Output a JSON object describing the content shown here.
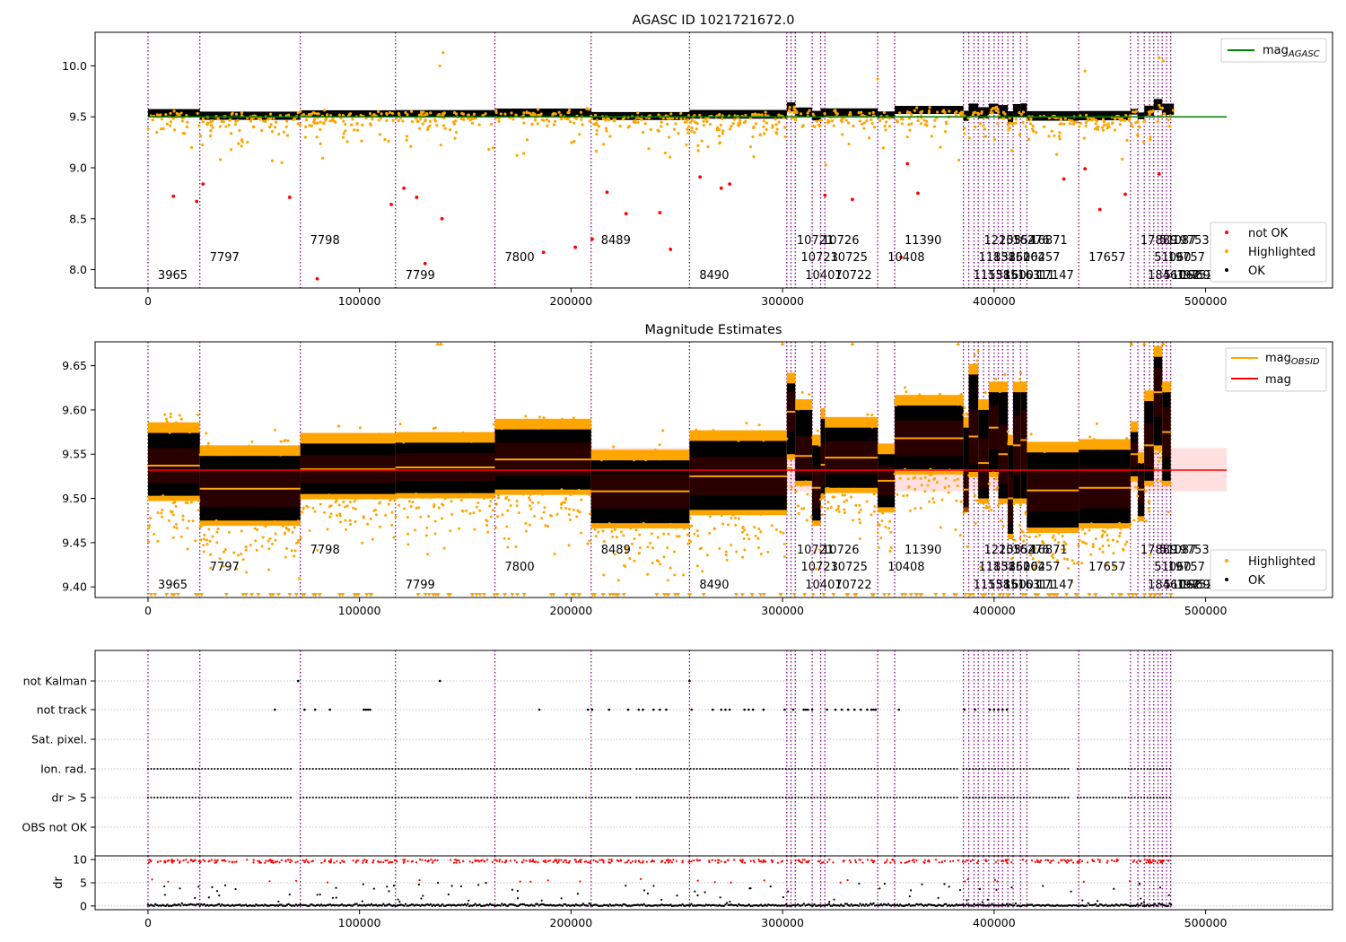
{
  "chart_data": [
    {
      "type": "scatter",
      "title": "AGASC ID 1021721672.0",
      "xlim": [
        -25000,
        560000
      ],
      "ylim": [
        7.82,
        10.33
      ],
      "xticks": [
        0,
        100000,
        200000,
        300000,
        400000,
        500000
      ],
      "yticks": [
        8.0,
        8.5,
        9.0,
        9.5,
        10.0
      ],
      "grid": false,
      "legend_placement": "top-right (mag line) and bottom-right (points)",
      "series": [
        {
          "name": "mag_AGASC",
          "kind": "line",
          "color": "#008000",
          "x": [
            0,
            510000
          ],
          "y": [
            9.5,
            9.5
          ]
        },
        {
          "name": "not OK",
          "kind": "points",
          "color": "#ff0000",
          "x": [
            12000,
            23000,
            26000,
            67000,
            80000,
            115000,
            121000,
            127000,
            131000,
            139000,
            187000,
            202000,
            210000,
            217000,
            226000,
            242000,
            247000,
            261000,
            271000,
            275000,
            320000,
            333000,
            356000,
            359000,
            364000,
            433000,
            443000,
            450000,
            462000,
            478000
          ],
          "y": [
            8.72,
            8.67,
            8.84,
            8.71,
            7.91,
            8.64,
            8.8,
            8.71,
            8.06,
            8.5,
            8.17,
            8.22,
            8.3,
            8.76,
            8.55,
            8.56,
            8.2,
            8.91,
            8.8,
            8.84,
            8.73,
            8.69,
            8.12,
            9.04,
            8.75,
            8.89,
            8.99,
            8.59,
            8.74,
            8.94
          ]
        },
        {
          "name": "Highlighted",
          "kind": "points",
          "color": "#ffa500"
        },
        {
          "name": "OK",
          "kind": "points",
          "color": "#000000"
        }
      ],
      "obsids": [
        {
          "label": "3965",
          "x": 0,
          "level": 0
        },
        {
          "label": "7797",
          "x": 24500,
          "level": 1
        },
        {
          "label": "7798",
          "x": 72000,
          "level": 2
        },
        {
          "label": "7799",
          "x": 117000,
          "level": 0
        },
        {
          "label": "7800",
          "x": 164000,
          "level": 1
        },
        {
          "label": "8489",
          "x": 209500,
          "level": 2
        },
        {
          "label": "8490",
          "x": 256000,
          "level": 0
        },
        {
          "label": "10721",
          "x": 302000,
          "level": 2
        },
        {
          "label": "10723",
          "x": 304000,
          "level": 1
        },
        {
          "label": "10407",
          "x": 306000,
          "level": 0
        },
        {
          "label": "10726",
          "x": 314000,
          "level": 2
        },
        {
          "label": "10725",
          "x": 318000,
          "level": 1
        },
        {
          "label": "10722",
          "x": 320000,
          "level": 0
        },
        {
          "label": "10408",
          "x": 345000,
          "level": 1
        },
        {
          "label": "11390",
          "x": 353000,
          "level": 2
        },
        {
          "label": "11551",
          "x": 385500,
          "level": 0
        },
        {
          "label": "11852",
          "x": 388000,
          "level": 1
        },
        {
          "label": "12203",
          "x": 390500,
          "level": 2
        },
        {
          "label": "13851",
          "x": 392500,
          "level": 0
        },
        {
          "label": "13852",
          "x": 395000,
          "level": 1
        },
        {
          "label": "15554",
          "x": 397500,
          "level": 2
        },
        {
          "label": "16001",
          "x": 400000,
          "level": 0
        },
        {
          "label": "16002",
          "x": 402000,
          "level": 1
        },
        {
          "label": "16276",
          "x": 404000,
          "level": 2
        },
        {
          "label": "16311",
          "x": 406500,
          "level": 0
        },
        {
          "label": "16457",
          "x": 409000,
          "level": 1
        },
        {
          "label": "16871",
          "x": 412500,
          "level": 2
        },
        {
          "label": "17147",
          "x": 415500,
          "level": 0
        },
        {
          "label": "17657",
          "x": 440000,
          "level": 1
        },
        {
          "label": "17889",
          "x": 464500,
          "level": 2
        },
        {
          "label": "18461",
          "x": 468000,
          "level": 0
        },
        {
          "label": "51060",
          "x": 471000,
          "level": 1
        },
        {
          "label": "51087",
          "x": 473500,
          "level": 2
        },
        {
          "label": "51062",
          "x": 475500,
          "level": 0
        },
        {
          "label": "19757",
          "x": 477500,
          "level": 1
        },
        {
          "label": "19753",
          "x": 479500,
          "level": 2
        },
        {
          "label": "19752",
          "x": 481500,
          "level": 0
        },
        {
          "label": "19699",
          "x": 483500,
          "level": 0
        }
      ],
      "obs_lines_x": [
        0,
        24500,
        72000,
        117000,
        164000,
        209500,
        256000,
        302000,
        304000,
        306000,
        314000,
        318000,
        320000,
        345000,
        353000,
        385500,
        388000,
        390500,
        392500,
        395000,
        397500,
        400000,
        402000,
        404000,
        406500,
        409000,
        412500,
        415500,
        440000,
        464500,
        468000,
        471000,
        473500,
        475500,
        477500,
        479500,
        481500,
        483500
      ]
    },
    {
      "type": "scatter",
      "title": "Magnitude Estimates",
      "xlim": [
        -25000,
        560000
      ],
      "ylim": [
        9.388,
        9.677
      ],
      "xticks": [
        0,
        100000,
        200000,
        300000,
        400000,
        500000
      ],
      "yticks": [
        9.4,
        9.45,
        9.5,
        9.55,
        9.6,
        9.65
      ],
      "grid": false,
      "legend_placement": "top-right (lines) and bottom-right (points)",
      "mag": 9.532,
      "mag_band": [
        9.508,
        9.557
      ],
      "series": [
        {
          "name": "mag_OBSID",
          "kind": "segments",
          "color": "#ffa500",
          "segments": [
            {
              "x0": 0,
              "x1": 24500,
              "mean": 9.537,
              "lo": 9.503,
              "hi": 9.574
            },
            {
              "x0": 24500,
              "x1": 72000,
              "mean": 9.511,
              "lo": 9.475,
              "hi": 9.548
            },
            {
              "x0": 72000,
              "x1": 117000,
              "mean": 9.533,
              "lo": 9.505,
              "hi": 9.562
            },
            {
              "x0": 117000,
              "x1": 164000,
              "mean": 9.535,
              "lo": 9.506,
              "hi": 9.563
            },
            {
              "x0": 164000,
              "x1": 209500,
              "mean": 9.544,
              "lo": 9.51,
              "hi": 9.578
            },
            {
              "x0": 209500,
              "x1": 256000,
              "mean": 9.508,
              "lo": 9.472,
              "hi": 9.543
            },
            {
              "x0": 256000,
              "x1": 302000,
              "mean": 9.525,
              "lo": 9.487,
              "hi": 9.565
            },
            {
              "x0": 302000,
              "x1": 306000,
              "mean": 9.598,
              "lo": 9.55,
              "hi": 9.63
            },
            {
              "x0": 306000,
              "x1": 314000,
              "mean": 9.548,
              "lo": 9.52,
              "hi": 9.6
            },
            {
              "x0": 314000,
              "x1": 318000,
              "mean": 9.512,
              "lo": 9.475,
              "hi": 9.56
            },
            {
              "x0": 318000,
              "x1": 320000,
              "mean": 9.538,
              "lo": 9.505,
              "hi": 9.59
            },
            {
              "x0": 320000,
              "x1": 345000,
              "mean": 9.546,
              "lo": 9.512,
              "hi": 9.58
            },
            {
              "x0": 345000,
              "x1": 353000,
              "mean": 9.52,
              "lo": 9.49,
              "hi": 9.55
            },
            {
              "x0": 353000,
              "x1": 385500,
              "mean": 9.568,
              "lo": 9.533,
              "hi": 9.605
            },
            {
              "x0": 385500,
              "x1": 388000,
              "mean": 9.51,
              "lo": 9.49,
              "hi": 9.58
            },
            {
              "x0": 388000,
              "x1": 392500,
              "mean": 9.57,
              "lo": 9.53,
              "hi": 9.64
            },
            {
              "x0": 392500,
              "x1": 397500,
              "mean": 9.54,
              "lo": 9.5,
              "hi": 9.6
            },
            {
              "x0": 397500,
              "x1": 402000,
              "mean": 9.58,
              "lo": 9.53,
              "hi": 9.62
            },
            {
              "x0": 402000,
              "x1": 406500,
              "mean": 9.55,
              "lo": 9.5,
              "hi": 9.62
            },
            {
              "x0": 406500,
              "x1": 409000,
              "mean": 9.5,
              "lo": 9.46,
              "hi": 9.56
            },
            {
              "x0": 409000,
              "x1": 412500,
              "mean": 9.56,
              "lo": 9.5,
              "hi": 9.62
            },
            {
              "x0": 412500,
              "x1": 415500,
              "mean": 9.566,
              "lo": 9.5,
              "hi": 9.62
            },
            {
              "x0": 415500,
              "x1": 440000,
              "mean": 9.509,
              "lo": 9.467,
              "hi": 9.552
            },
            {
              "x0": 440000,
              "x1": 464500,
              "mean": 9.512,
              "lo": 9.472,
              "hi": 9.555
            },
            {
              "x0": 464500,
              "x1": 468000,
              "mean": 9.55,
              "lo": 9.525,
              "hi": 9.575
            },
            {
              "x0": 468000,
              "x1": 471000,
              "mean": 9.51,
              "lo": 9.48,
              "hi": 9.54
            },
            {
              "x0": 471000,
              "x1": 475500,
              "mean": 9.56,
              "lo": 9.52,
              "hi": 9.61
            },
            {
              "x0": 475500,
              "x1": 479500,
              "mean": 9.62,
              "lo": 9.56,
              "hi": 9.66
            },
            {
              "x0": 479500,
              "x1": 483500,
              "mean": 9.575,
              "lo": 9.52,
              "hi": 9.62
            }
          ]
        },
        {
          "name": "mag",
          "kind": "line",
          "color": "#ff0000"
        },
        {
          "name": "Highlighted",
          "kind": "points",
          "color": "#ffa500"
        },
        {
          "name": "OK",
          "kind": "points",
          "color": "#000000"
        }
      ]
    },
    {
      "type": "scatter",
      "title": "",
      "xlim": [
        -25000,
        560000
      ],
      "categories": [
        "not Kalman",
        "not track",
        "Sat. pixel.",
        "Ion. rad.",
        "dr > 5",
        "OBS not OK"
      ],
      "grid": true,
      "flags": {
        "not Kalman": [
          71000,
          138000,
          256000
        ],
        "not track": [
          60000,
          74000,
          79000,
          86000,
          102000,
          103000,
          104000,
          105000,
          185000,
          208000,
          210000,
          218000,
          227000,
          232000,
          234000,
          239000,
          242000,
          245000,
          257000,
          267000,
          271000,
          273000,
          275000,
          282000,
          284000,
          286000,
          291000,
          301000,
          305000,
          310000,
          311000,
          312000,
          314000,
          321000,
          325000,
          328000,
          331000,
          334000,
          337000,
          340000,
          342000,
          343000,
          344000,
          355000,
          386000,
          391000,
          398000,
          400000,
          402000,
          404000,
          406000
        ],
        "Sat. pixel.": [],
        "Ion. rad.": "dense along all observations",
        "dr > 5": "dense along all observations",
        "OBS not OK": []
      }
    },
    {
      "type": "scatter",
      "title": "",
      "ylabel": "dr",
      "xlim": [
        -25000,
        560000
      ],
      "ylim": [
        -0.8,
        10.8
      ],
      "xticks": [
        0,
        100000,
        200000,
        300000,
        400000,
        500000
      ],
      "yticks": [
        0,
        5,
        10
      ],
      "series": [
        {
          "name": "dr > 5",
          "kind": "points",
          "color": "#ff0000"
        },
        {
          "name": "dr <= 5",
          "kind": "points",
          "color": "#000000"
        }
      ]
    }
  ]
}
